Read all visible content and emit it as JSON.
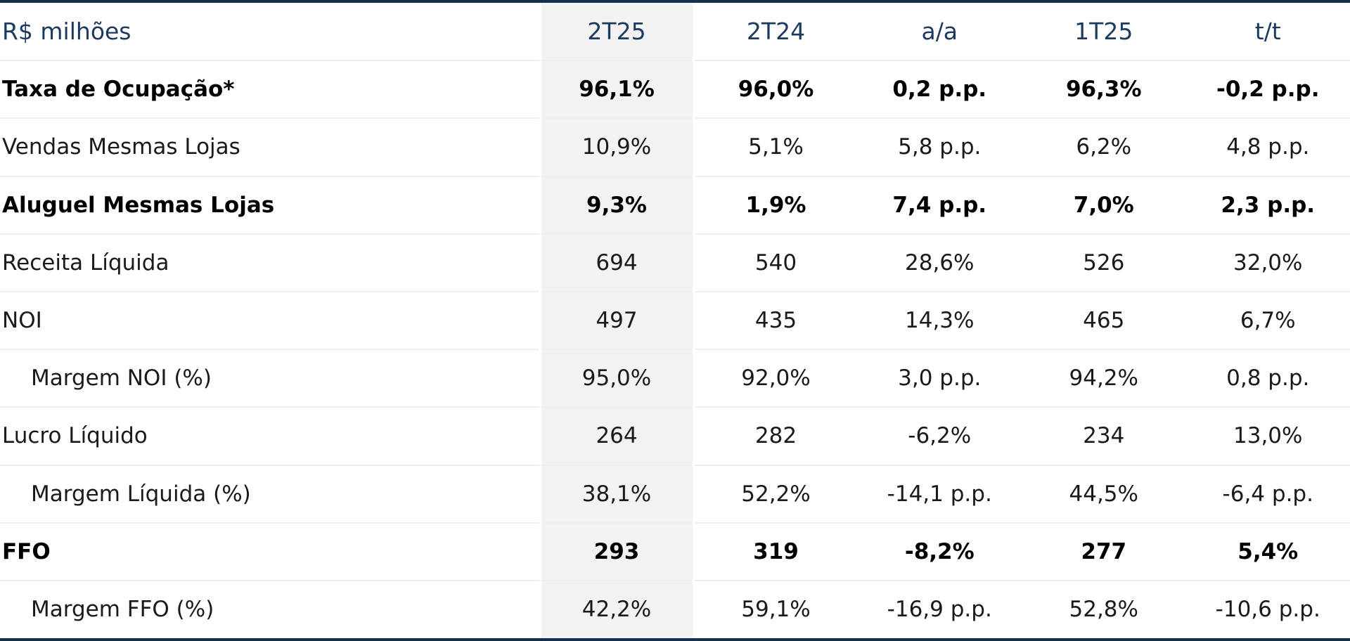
{
  "header": {
    "label": "R$ milhões",
    "columns": [
      "2T25",
      "2T24",
      "a/a",
      "1T25",
      "t/t"
    ]
  },
  "rows": [
    {
      "label": "Taxa de Ocupação*",
      "bold": true,
      "indent": false,
      "values": [
        "96,1%",
        "96,0%",
        "0,2  p.p.",
        "96,3%",
        "-0,2 p.p."
      ]
    },
    {
      "label": "Vendas Mesmas Lojas",
      "bold": false,
      "indent": false,
      "values": [
        "10,9%",
        "5,1%",
        "5,8  p.p.",
        "6,2%",
        "4,8  p.p."
      ]
    },
    {
      "label": "Aluguel Mesmas Lojas",
      "bold": true,
      "indent": false,
      "values": [
        "9,3%",
        "1,9%",
        "7,4  p.p.",
        "7,0%",
        "2,3  p.p."
      ]
    },
    {
      "label": "Receita Líquida",
      "bold": false,
      "indent": false,
      "values": [
        "694",
        "540",
        "28,6%",
        "526",
        "32,0%"
      ]
    },
    {
      "label": "NOI",
      "bold": false,
      "indent": false,
      "values": [
        "497",
        "435",
        "14,3%",
        "465",
        "6,7%"
      ]
    },
    {
      "label": "Margem NOI (%)",
      "bold": false,
      "indent": true,
      "values": [
        "95,0%",
        "92,0%",
        "3,0  p.p.",
        "94,2%",
        "0,8  p.p."
      ]
    },
    {
      "label": "Lucro Líquido",
      "bold": false,
      "indent": false,
      "values": [
        "264",
        "282",
        "-6,2%",
        "234",
        "13,0%"
      ]
    },
    {
      "label": "Margem Líquida (%)",
      "bold": false,
      "indent": true,
      "values": [
        "38,1%",
        "52,2%",
        "-14,1 p.p.",
        "44,5%",
        "-6,4 p.p."
      ]
    },
    {
      "label": "FFO",
      "bold": true,
      "indent": false,
      "values": [
        "293",
        "319",
        "-8,2%",
        "277",
        "5,4%"
      ]
    },
    {
      "label": "Margem FFO (%)",
      "bold": false,
      "indent": true,
      "values": [
        "42,2%",
        "59,1%",
        "-16,9 p.p.",
        "52,8%",
        "-10,6 p.p."
      ]
    }
  ],
  "colors": {
    "header_text": "#1c3a5e",
    "rule": "#13304f",
    "highlight_column": "#f2f2f2"
  }
}
